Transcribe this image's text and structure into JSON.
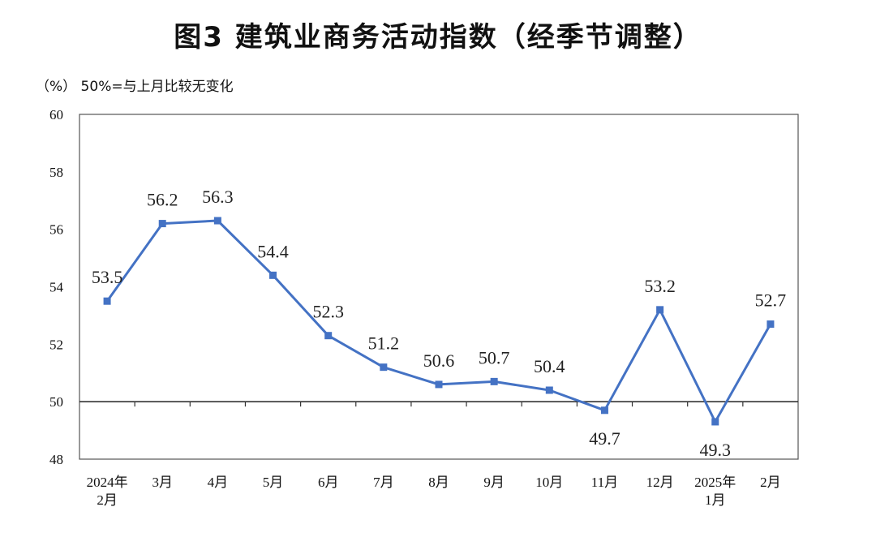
{
  "title": "图3  建筑业商务活动指数（经季节调整）",
  "note": "（%）  50%=与上月比较无变化",
  "chart_data": {
    "type": "line",
    "title": "图3  建筑业商务活动指数（经季节调整）",
    "ylabel": "（%）",
    "reference_line": {
      "y": 50,
      "label": "50%=与上月比较无变化"
    },
    "ylim": [
      48,
      60
    ],
    "yticks": [
      "48",
      "50",
      "52",
      "54",
      "56",
      "58",
      "60"
    ],
    "categories": [
      [
        "2024年",
        "2月"
      ],
      [
        "3月"
      ],
      [
        "4月"
      ],
      [
        "5月"
      ],
      [
        "6月"
      ],
      [
        "7月"
      ],
      [
        "8月"
      ],
      [
        "9月"
      ],
      [
        "10月"
      ],
      [
        "11月"
      ],
      [
        "12月"
      ],
      [
        "2025年",
        "1月"
      ],
      [
        "2月"
      ]
    ],
    "values": [
      53.5,
      56.2,
      56.3,
      54.4,
      52.3,
      51.2,
      50.6,
      50.7,
      50.4,
      49.7,
      53.2,
      49.3,
      52.7
    ],
    "labels": [
      "53.5",
      "56.2",
      "56.3",
      "54.4",
      "52.3",
      "51.2",
      "50.6",
      "50.7",
      "50.4",
      "49.7",
      "53.2",
      "49.3",
      "52.7"
    ],
    "line_color": "#4472C4",
    "grid": false
  }
}
